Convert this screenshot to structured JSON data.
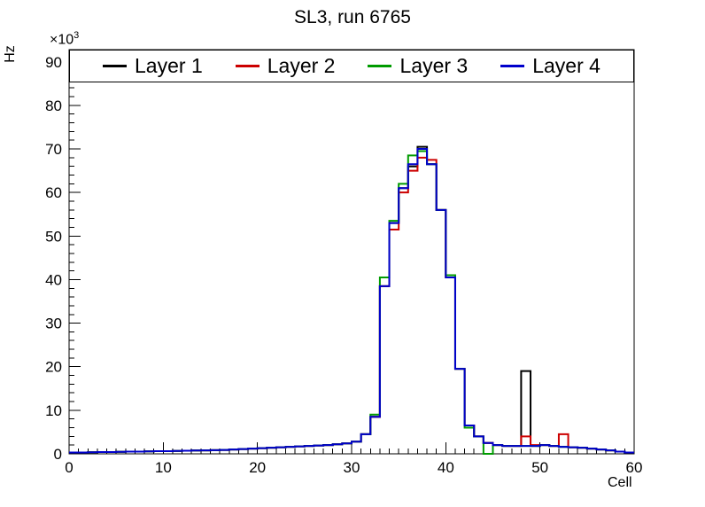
{
  "title": "SL3, run 6765",
  "axes": {
    "x_label": "Cell",
    "y_label": "Hz",
    "y_multiplier_base": "×10",
    "y_multiplier_exp": "3",
    "x_ticks": [
      0,
      10,
      20,
      30,
      40,
      50,
      60
    ],
    "y_ticks": [
      0,
      10,
      20,
      30,
      40,
      50,
      60,
      70,
      80,
      90
    ]
  },
  "chart_data": {
    "type": "line",
    "subtype": "step-histogram",
    "title": "SL3, run 6765",
    "xlabel": "Cell",
    "ylabel": "Hz",
    "y_unit_scale": "x10^3",
    "xlim": [
      0,
      60
    ],
    "ylim": [
      0,
      92.8
    ],
    "bin_width": 1,
    "grid": false,
    "legend_position": "top-inside-horizontal",
    "series": [
      {
        "name": "Layer 1",
        "color": "#000000",
        "values": [
          0.3,
          0.3,
          0.35,
          0.4,
          0.4,
          0.45,
          0.5,
          0.5,
          0.55,
          0.6,
          0.6,
          0.65,
          0.7,
          0.75,
          0.8,
          0.85,
          0.9,
          1.0,
          1.1,
          1.2,
          1.3,
          1.4,
          1.5,
          1.6,
          1.7,
          1.8,
          1.9,
          2.0,
          2.2,
          2.4,
          2.8,
          4.5,
          8.5,
          38.5,
          53,
          61,
          66,
          70.5,
          66.5,
          56,
          40.5,
          19.5,
          6.5,
          4,
          2.5,
          2,
          1.8,
          1.8,
          19,
          1.8,
          2,
          1.8,
          1.6,
          1.5,
          1.4,
          1.2,
          1.0,
          0.8,
          0.5,
          0.3
        ]
      },
      {
        "name": "Layer 2",
        "color": "#cc0000",
        "values": [
          0.3,
          0.3,
          0.35,
          0.4,
          0.4,
          0.45,
          0.5,
          0.5,
          0.55,
          0.6,
          0.6,
          0.65,
          0.7,
          0.75,
          0.8,
          0.85,
          0.9,
          1.0,
          1.1,
          1.2,
          1.3,
          1.4,
          1.5,
          1.6,
          1.7,
          1.8,
          1.9,
          2.0,
          2.2,
          2.4,
          2.8,
          4.5,
          8.5,
          38.5,
          51.5,
          60,
          65,
          68,
          67.5,
          56,
          40.5,
          19.5,
          6.5,
          4,
          2.5,
          2,
          1.8,
          1.8,
          4,
          2,
          2,
          1.8,
          4.5,
          1.5,
          1.4,
          1.2,
          1.0,
          0.8,
          0.5,
          0.3
        ]
      },
      {
        "name": "Layer 3",
        "color": "#009b00",
        "values": [
          0.3,
          0.3,
          0.35,
          0.4,
          0.4,
          0.45,
          0.5,
          0.5,
          0.55,
          0.6,
          0.6,
          0.65,
          0.7,
          0.75,
          0.8,
          0.85,
          0.9,
          1.0,
          1.1,
          1.2,
          1.3,
          1.4,
          1.5,
          1.6,
          1.7,
          1.8,
          1.9,
          2.0,
          2.2,
          2.4,
          2.8,
          4.5,
          9,
          40.5,
          53.5,
          62,
          68.5,
          69.5,
          66.5,
          56,
          41,
          19.5,
          6,
          4,
          0,
          2,
          1.8,
          1.8,
          1.8,
          1.8,
          2,
          1.8,
          1.6,
          1.5,
          1.4,
          1.2,
          1.0,
          0.8,
          0.5,
          0.3
        ]
      },
      {
        "name": "Layer 4",
        "color": "#0000cc",
        "values": [
          0.3,
          0.3,
          0.35,
          0.4,
          0.4,
          0.45,
          0.5,
          0.5,
          0.55,
          0.6,
          0.6,
          0.65,
          0.7,
          0.75,
          0.8,
          0.85,
          0.9,
          1.0,
          1.1,
          1.2,
          1.3,
          1.4,
          1.5,
          1.6,
          1.7,
          1.8,
          1.9,
          2.0,
          2.2,
          2.4,
          2.8,
          4.5,
          8.5,
          38.5,
          53,
          61,
          66.5,
          70,
          66.5,
          56,
          40.5,
          19.5,
          6.5,
          4,
          2.5,
          2,
          1.8,
          1.8,
          1.8,
          1.8,
          2,
          1.8,
          1.6,
          1.5,
          1.4,
          1.2,
          1.0,
          0.8,
          0.5,
          0.3
        ]
      }
    ]
  }
}
